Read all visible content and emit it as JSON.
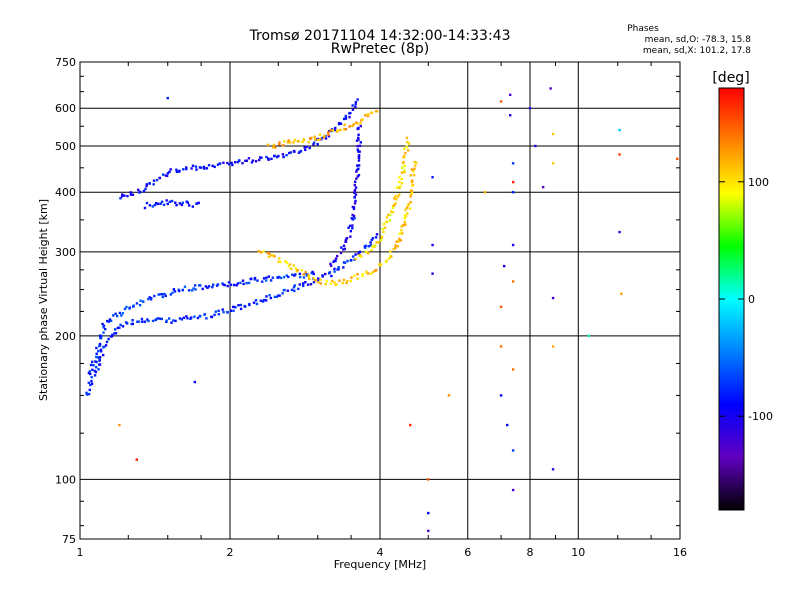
{
  "chart_data": {
    "type": "scatter",
    "title": "Tromsø 20171104 14:32:00-14:33:43",
    "subtitle": "RwPretec (8p)",
    "phase_box": {
      "heading": "Phases",
      "line_o": "mean, sd,O: -78.3, 15.8",
      "line_x": "mean, sd,X: 101.2, 17.8"
    },
    "xlabel": "Frequency [MHz]",
    "ylabel": "Stationary phase Virtual Height [km]",
    "x_scale": "log2",
    "y_scale": "log",
    "xlim": [
      1,
      16
    ],
    "ylim": [
      75,
      750
    ],
    "x_ticks": [
      1,
      2,
      4,
      6,
      8,
      10,
      16
    ],
    "x_tick_labels": [
      "1",
      "2",
      "4",
      "6",
      "8",
      "10",
      "16"
    ],
    "y_ticks": [
      75,
      100,
      200,
      300,
      400,
      500,
      600,
      750
    ],
    "y_tick_labels": [
      "75",
      "100",
      "200",
      "300",
      "400",
      "500",
      "600",
      "750"
    ],
    "grid": true,
    "colorbar": {
      "label": "[deg]",
      "range": [
        -180,
        180
      ],
      "ticks": [
        100,
        0,
        -100
      ],
      "tick_labels": [
        "100",
        "0",
        "-100"
      ],
      "colors": [
        "#ff0000",
        "#ff8000",
        "#ffff00",
        "#00ff00",
        "#00ffff",
        "#0080ff",
        "#0000ff",
        "#6000c0",
        "#000000"
      ]
    },
    "traces": [
      {
        "name": "trace-low-o",
        "phase": -80,
        "points": [
          [
            1.03,
            150
          ],
          [
            1.05,
            160
          ],
          [
            1.08,
            170
          ],
          [
            1.1,
            180
          ],
          [
            1.12,
            190
          ],
          [
            1.15,
            200
          ],
          [
            1.2,
            210
          ],
          [
            1.3,
            215
          ],
          [
            1.5,
            215
          ],
          [
            1.8,
            220
          ],
          [
            2.1,
            230
          ],
          [
            2.4,
            240
          ],
          [
            2.8,
            255
          ],
          [
            3.2,
            270
          ],
          [
            3.5,
            290
          ],
          [
            3.8,
            310
          ],
          [
            3.95,
            330
          ]
        ]
      },
      {
        "name": "trace-cusp-o",
        "phase": -75,
        "points": [
          [
            1.04,
            165
          ],
          [
            1.08,
            180
          ],
          [
            1.1,
            200
          ],
          [
            1.12,
            212
          ],
          [
            1.18,
            220
          ],
          [
            1.25,
            230
          ],
          [
            1.4,
            240
          ],
          [
            1.6,
            250
          ],
          [
            1.9,
            255
          ],
          [
            2.2,
            260
          ],
          [
            2.5,
            265
          ],
          [
            2.8,
            268
          ],
          [
            3.0,
            272
          ]
        ]
      },
      {
        "name": "trace-high-o",
        "phase": -90,
        "points": [
          [
            1.2,
            390
          ],
          [
            1.3,
            400
          ],
          [
            1.4,
            420
          ],
          [
            1.5,
            440
          ],
          [
            1.7,
            450
          ],
          [
            2.0,
            460
          ],
          [
            2.3,
            470
          ],
          [
            2.6,
            480
          ],
          [
            2.9,
            500
          ],
          [
            3.1,
            520
          ],
          [
            3.3,
            550
          ],
          [
            3.5,
            590
          ],
          [
            3.6,
            630
          ]
        ]
      },
      {
        "name": "trace-f2-o",
        "phase": -100,
        "points": [
          [
            3.2,
            280
          ],
          [
            3.35,
            300
          ],
          [
            3.45,
            320
          ],
          [
            3.5,
            340
          ],
          [
            3.55,
            370
          ],
          [
            3.58,
            400
          ],
          [
            3.6,
            440
          ],
          [
            3.62,
            480
          ],
          [
            3.63,
            520
          ],
          [
            3.64,
            560
          ]
        ]
      },
      {
        "name": "trace-e-o",
        "phase": -85,
        "points": [
          [
            1.35,
            375
          ],
          [
            1.45,
            380
          ],
          [
            1.55,
            380
          ],
          [
            1.65,
            378
          ],
          [
            1.75,
            376
          ]
        ]
      },
      {
        "name": "trace-low-x",
        "phase": 110,
        "points": [
          [
            2.3,
            300
          ],
          [
            2.5,
            290
          ],
          [
            2.8,
            270
          ],
          [
            3.0,
            260
          ],
          [
            3.3,
            258
          ],
          [
            3.6,
            265
          ],
          [
            3.9,
            275
          ],
          [
            4.2,
            295
          ],
          [
            4.4,
            320
          ],
          [
            4.5,
            350
          ],
          [
            4.6,
            390
          ],
          [
            4.65,
            430
          ],
          [
            4.7,
            470
          ]
        ]
      },
      {
        "name": "trace-high-x",
        "phase": 120,
        "points": [
          [
            2.4,
            500
          ],
          [
            2.7,
            510
          ],
          [
            3.0,
            520
          ],
          [
            3.3,
            540
          ],
          [
            3.6,
            560
          ],
          [
            3.8,
            580
          ],
          [
            4.0,
            590
          ]
        ]
      },
      {
        "name": "trace-f2-x",
        "phase": 100,
        "points": [
          [
            3.6,
            290
          ],
          [
            3.8,
            300
          ],
          [
            4.0,
            320
          ],
          [
            4.2,
            360
          ],
          [
            4.35,
            400
          ],
          [
            4.45,
            440
          ],
          [
            4.5,
            480
          ],
          [
            4.55,
            520
          ]
        ]
      }
    ],
    "points": [
      {
        "x": 1.5,
        "y": 630,
        "phase": -80
      },
      {
        "x": 1.7,
        "y": 160,
        "phase": -90
      },
      {
        "x": 1.3,
        "y": 110,
        "phase": 170
      },
      {
        "x": 1.2,
        "y": 130,
        "phase": 130
      },
      {
        "x": 4.6,
        "y": 130,
        "phase": 170
      },
      {
        "x": 5.0,
        "y": 100,
        "phase": 150
      },
      {
        "x": 5.0,
        "y": 85,
        "phase": -90
      },
      {
        "x": 5.0,
        "y": 78,
        "phase": -120
      },
      {
        "x": 5.1,
        "y": 270,
        "phase": -110
      },
      {
        "x": 5.1,
        "y": 310,
        "phase": -100
      },
      {
        "x": 5.1,
        "y": 430,
        "phase": -80
      },
      {
        "x": 5.5,
        "y": 150,
        "phase": 130
      },
      {
        "x": 6.5,
        "y": 400,
        "phase": 120
      },
      {
        "x": 7.0,
        "y": 620,
        "phase": 150
      },
      {
        "x": 7.0,
        "y": 230,
        "phase": 150
      },
      {
        "x": 7.0,
        "y": 190,
        "phase": 140
      },
      {
        "x": 7.0,
        "y": 150,
        "phase": -90
      },
      {
        "x": 7.1,
        "y": 280,
        "phase": -100
      },
      {
        "x": 7.2,
        "y": 130,
        "phase": -90
      },
      {
        "x": 7.3,
        "y": 640,
        "phase": -120
      },
      {
        "x": 7.3,
        "y": 580,
        "phase": -110
      },
      {
        "x": 7.4,
        "y": 460,
        "phase": -70
      },
      {
        "x": 7.4,
        "y": 420,
        "phase": 170
      },
      {
        "x": 7.4,
        "y": 400,
        "phase": -80
      },
      {
        "x": 7.4,
        "y": 310,
        "phase": -100
      },
      {
        "x": 7.4,
        "y": 260,
        "phase": 140
      },
      {
        "x": 7.4,
        "y": 170,
        "phase": 140
      },
      {
        "x": 7.4,
        "y": 115,
        "phase": -70
      },
      {
        "x": 7.4,
        "y": 95,
        "phase": -120
      },
      {
        "x": 8.0,
        "y": 600,
        "phase": -110
      },
      {
        "x": 8.2,
        "y": 500,
        "phase": -100
      },
      {
        "x": 8.5,
        "y": 410,
        "phase": -130
      },
      {
        "x": 8.8,
        "y": 660,
        "phase": -130
      },
      {
        "x": 8.9,
        "y": 530,
        "phase": 110
      },
      {
        "x": 8.9,
        "y": 460,
        "phase": 110
      },
      {
        "x": 8.9,
        "y": 240,
        "phase": -120
      },
      {
        "x": 8.9,
        "y": 190,
        "phase": 120
      },
      {
        "x": 8.9,
        "y": 105,
        "phase": -110
      },
      {
        "x": 10.5,
        "y": 200,
        "phase": 10
      },
      {
        "x": 12.1,
        "y": 540,
        "phase": -20
      },
      {
        "x": 12.1,
        "y": 480,
        "phase": 160
      },
      {
        "x": 12.1,
        "y": 330,
        "phase": -120
      },
      {
        "x": 12.2,
        "y": 245,
        "phase": 120
      },
      {
        "x": 15.8,
        "y": 470,
        "phase": 150
      }
    ]
  }
}
